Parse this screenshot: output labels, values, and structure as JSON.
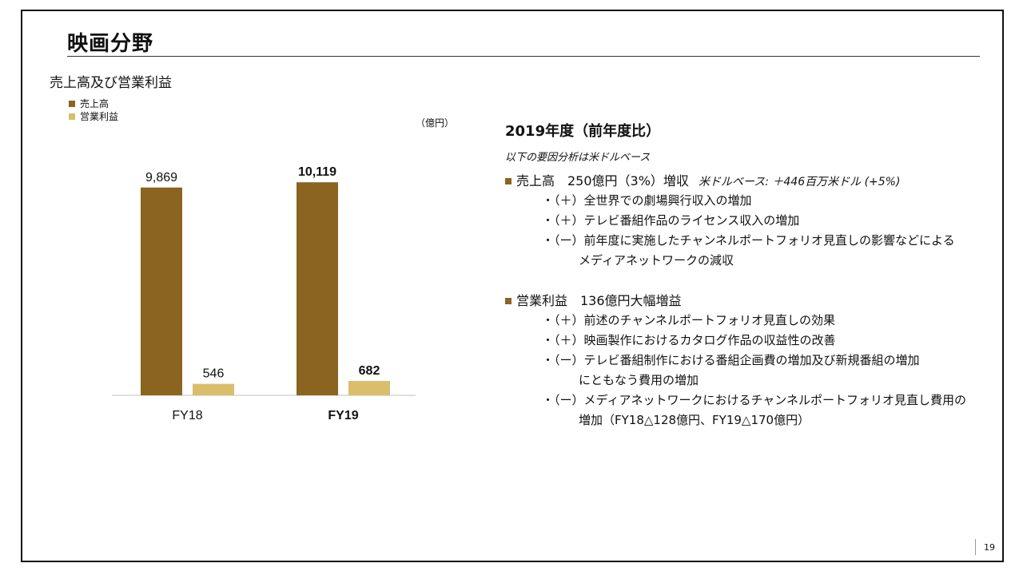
{
  "title": "映画分野",
  "subtitle": "売上高及び営業利益",
  "unit": "（億円）",
  "page_number": "19",
  "colors": {
    "sales": "#8B6420",
    "op_income": "#D9BE6C",
    "accent": "#8B6420"
  },
  "chart_data": {
    "type": "bar",
    "categories": [
      "FY18",
      "FY19"
    ],
    "categories_bold": [
      false,
      true
    ],
    "series": [
      {
        "name": "売上高",
        "values": [
          9869,
          10119
        ],
        "labels": [
          "9,869",
          "10,119"
        ],
        "color": "#8B6420"
      },
      {
        "name": "営業利益",
        "values": [
          546,
          682
        ],
        "labels": [
          "546",
          "682"
        ],
        "color": "#D9BE6C"
      }
    ],
    "ylim": [
      0,
      11000
    ],
    "legend": "top-left",
    "grid": false
  },
  "panel": {
    "title": "2019年度（前年度比）",
    "note": "以下の要因分析は米ドルベース",
    "sections": [
      {
        "heading": "売上高　250億円（3%）増収",
        "heading_note": "米ドルベース: ＋446百万米ドル (+5%)",
        "items": [
          {
            "line": "・（＋）全世界での劇場興行収入の増加"
          },
          {
            "line": "・（＋）テレビ番組作品のライセンス収入の増加"
          },
          {
            "line": "・（ー）前年度に実施したチャンネルポートフォリオ見直しの影響などによる",
            "cont": "メディアネットワークの減収"
          }
        ]
      },
      {
        "heading": "営業利益　136億円大幅増益",
        "items": [
          {
            "line": "・（＋）前述のチャンネルポートフォリオ見直しの効果"
          },
          {
            "line": "・（＋）映画製作におけるカタログ作品の収益性の改善"
          },
          {
            "line": "・（ー）テレビ番組制作における番組企画費の増加及び新規番組の増加",
            "cont": "にともなう費用の増加"
          },
          {
            "line": "・（ー）メディアネットワークにおけるチャンネルポートフォリオ見直し費用の",
            "cont": "増加（FY18△128億円、FY19△170億円）"
          }
        ]
      }
    ]
  }
}
